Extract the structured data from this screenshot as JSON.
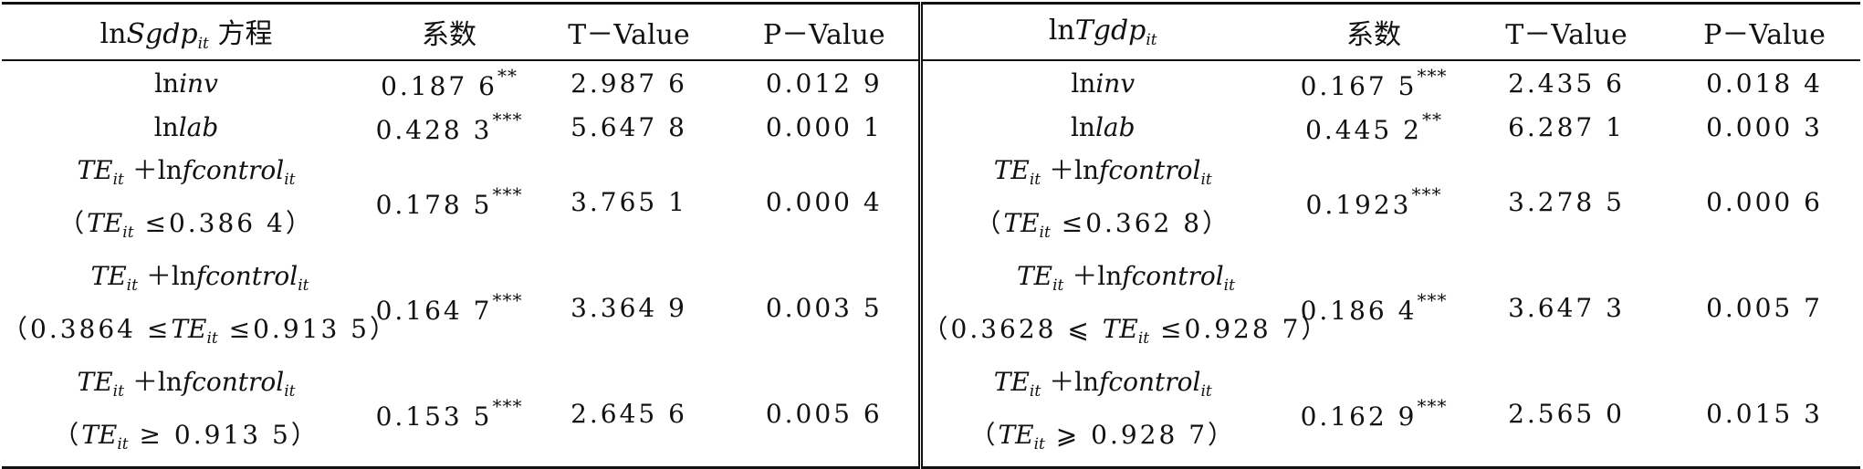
{
  "header": {
    "left_eq": {
      "prefix": "ln",
      "var": "Sgdp",
      "sub": "it",
      "suffix": " 方程"
    },
    "right_eq": {
      "prefix": "ln",
      "var": "Tgdp",
      "sub": "it"
    },
    "coef": "系数",
    "tval": "T－Value",
    "pval": "P－Value"
  },
  "rows": [
    {
      "type": "simple",
      "left": {
        "label_prefix": "ln",
        "label_var": "inv",
        "coef": "0.187 6",
        "stars": "**",
        "t": "2.987 6",
        "p": "0.012 9"
      },
      "right": {
        "label_prefix": "ln",
        "label_var": "inv",
        "coef": "0.167 5",
        "stars": "***",
        "t": "2.435 6",
        "p": "0.018 4"
      }
    },
    {
      "type": "simple",
      "left": {
        "label_prefix": "ln",
        "label_var": "lab",
        "coef": "0.428 3",
        "stars": "***",
        "t": "5.647 8",
        "p": "0.000 1"
      },
      "right": {
        "label_prefix": "ln",
        "label_var": "lab",
        "coef": "0.445 2",
        "stars": "**",
        "t": "6.287 1",
        "p": "0.000 3"
      }
    },
    {
      "type": "double",
      "left": {
        "cond_pre": "（",
        "cond_mid": " ≤0.386 4）",
        "coef": "0.178 5",
        "stars": "***",
        "t": "3.765 1",
        "p": "0.000 4"
      },
      "right": {
        "cond_pre": "（",
        "cond_mid": " ≤0.362 8）",
        "coef": "0.1923",
        "stars": "***",
        "t": "3.278 5",
        "p": "0.000 6"
      }
    },
    {
      "type": "double",
      "left": {
        "cond_pre": "（0.3864 ≤",
        "cond_mid": " ≤0.913 5）",
        "coef": "0.164 7",
        "stars": "***",
        "t": "3.364 9",
        "p": "0.003 5"
      },
      "right": {
        "cond_pre": "（0.3628 ⩽ ",
        "cond_mid": " ≤0.928 7）",
        "coef": "0.186 4",
        "stars": "***",
        "t": "3.647 3",
        "p": "0.005 7"
      }
    },
    {
      "type": "double",
      "left": {
        "cond_pre": "（",
        "cond_mid": " ≥ 0.913 5）",
        "coef": "0.153 5",
        "stars": "***",
        "t": "2.645 6",
        "p": "0.005 6"
      },
      "right": {
        "cond_pre": "（",
        "cond_mid": " ⩾ 0.928 7）",
        "coef": "0.162 9",
        "stars": "***",
        "t": "2.565 0",
        "p": "0.015 3"
      }
    }
  ],
  "expr": {
    "te": "TE",
    "te_sub": "it",
    "plus": " ＋ln",
    "control": "fcontrol",
    "control_sub": "it"
  }
}
